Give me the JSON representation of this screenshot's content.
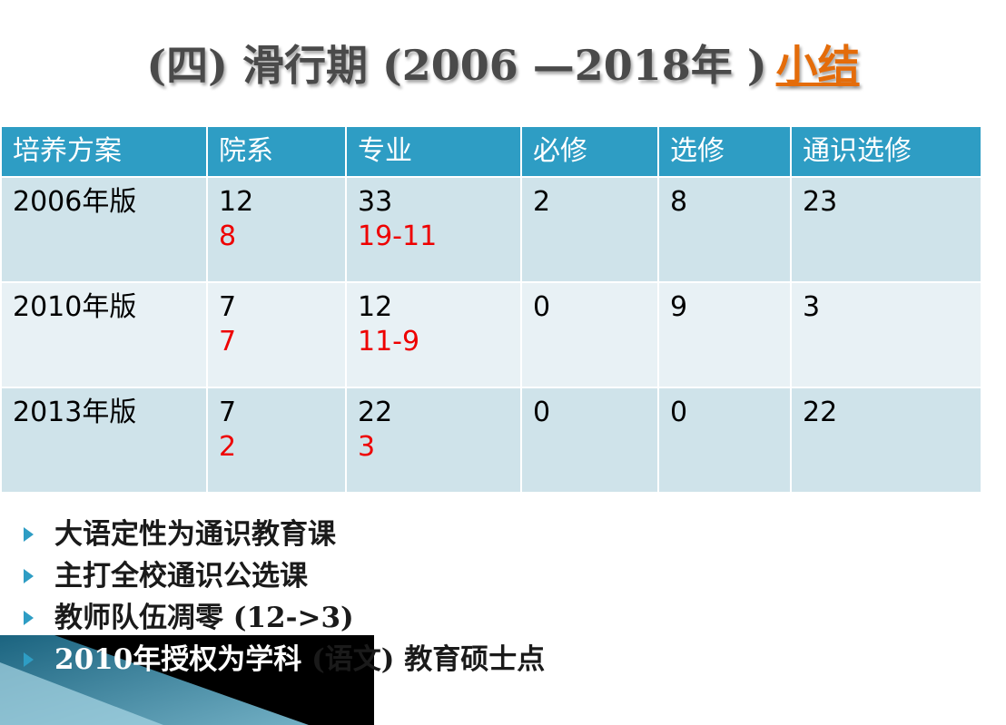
{
  "title": {
    "text": "(四) 滑行期 (2006 —2018年 )",
    "link": "小结"
  },
  "table": {
    "headers": [
      "培养方案",
      "院系",
      "专业",
      "必修",
      "选修",
      "通识选修"
    ],
    "rows": [
      {
        "plan": "2006年版",
        "dept": "12",
        "dept_sub": "8",
        "major": "33",
        "major_sub": "19-11",
        "required": "2",
        "elective": "8",
        "general": "23"
      },
      {
        "plan": "2010年版",
        "dept": "7",
        "dept_sub": "7",
        "major": "12",
        "major_sub": "11-9",
        "required": "0",
        "elective": "9",
        "general": "3"
      },
      {
        "plan": "2013年版",
        "dept": "7",
        "dept_sub": "2",
        "major": "22",
        "major_sub": "3",
        "required": "0",
        "elective": "0",
        "general": "22"
      }
    ]
  },
  "bullets": [
    "大语定性为通识教育课",
    "主打全校通识公选课",
    "教师队伍凋零 (12->3)"
  ],
  "last_bullet": {
    "lead": "2010年授权为学科",
    "tail": " (语文) 教育硕士点"
  },
  "colors": {
    "header_bg": "#2e9dc4",
    "row_odd": "#cfe3ea",
    "row_even": "#e8f1f5",
    "highlight": "#ee0000",
    "title_link": "#e46c0a"
  }
}
